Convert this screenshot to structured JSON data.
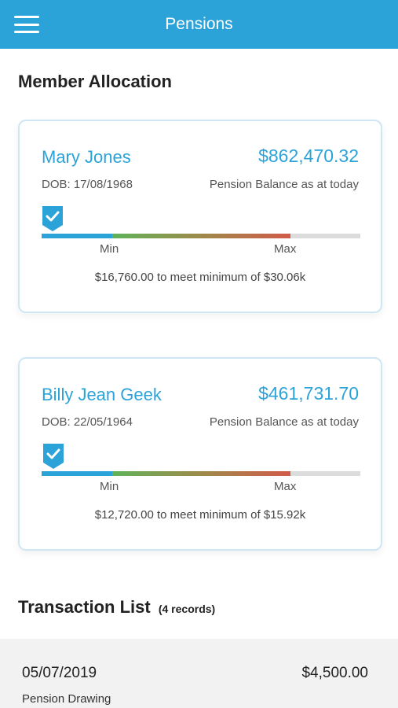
{
  "header": {
    "title": "Pensions",
    "menu_icon": "hamburger-menu-icon"
  },
  "allocation": {
    "title": "Member Allocation",
    "members": [
      {
        "name": "Mary Jones",
        "balance": "$862,470.32",
        "dob": "DOB: 17/08/1968",
        "balance_label": "Pension Balance as at today",
        "min_label": "Min",
        "max_label": "Max",
        "note": "$16,760.00 to meet minimum of $30.06k",
        "marker_icon": "check-shield-icon"
      },
      {
        "name": "Billy Jean Geek",
        "balance": "$461,731.70",
        "dob": "DOB: 22/05/1964",
        "balance_label": "Pension Balance as at today",
        "min_label": "Min",
        "max_label": "Max",
        "note": "$12,720.00 to meet minimum of $15.92k",
        "marker_icon": "check-shield-icon"
      }
    ]
  },
  "transactions": {
    "title": "Transaction List",
    "count_label": "(4 records)",
    "items": [
      {
        "date": "05/07/2019",
        "amount": "$4,500.00",
        "description": "Pension Drawing"
      }
    ]
  },
  "colors": {
    "accent": "#2ba3d9",
    "card_border": "#cfe7f5",
    "bar_track": "#dcdcdc",
    "bar_green": "#5fb35a",
    "bar_red": "#d25a4a"
  }
}
